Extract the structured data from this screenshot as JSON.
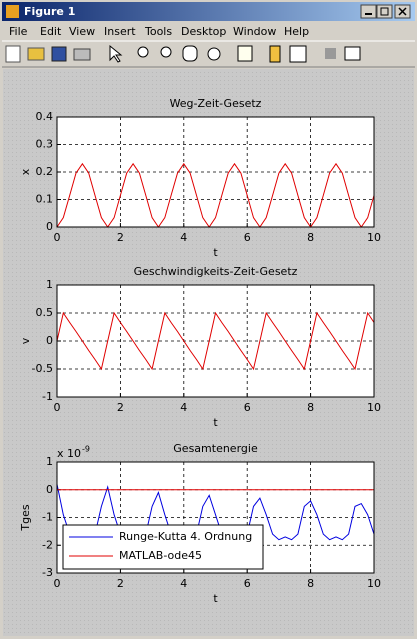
{
  "window": {
    "title": "Figure 1",
    "menu": [
      "File",
      "Edit",
      "View",
      "Insert",
      "Tools",
      "Desktop",
      "Window",
      "Help"
    ]
  },
  "chart_data": [
    {
      "type": "line",
      "title": "Weg-Zeit-Gesetz",
      "x_label": "t",
      "y_label": "x",
      "x": [
        0,
        0.2,
        0.4,
        0.6,
        0.8,
        1,
        1.2,
        1.4,
        1.6,
        1.8,
        2,
        2.2,
        2.4,
        2.6,
        2.8,
        3,
        3.2,
        3.4,
        3.6,
        3.8,
        4,
        4.2,
        4.4,
        4.6,
        4.8,
        5,
        5.2,
        5.4,
        5.6,
        5.8,
        6,
        6.2,
        6.4,
        6.6,
        6.8,
        7,
        7.2,
        7.4,
        7.6,
        7.8,
        8,
        8.2,
        8.4,
        8.6,
        8.8,
        9,
        9.2,
        9.4,
        9.6,
        9.8,
        10
      ],
      "series": [
        {
          "color": "#e00000",
          "values": [
            0,
            0.034,
            0.115,
            0.196,
            0.23,
            0.196,
            0.115,
            0.034,
            0,
            0.034,
            0.115,
            0.196,
            0.23,
            0.196,
            0.115,
            0.034,
            0,
            0.034,
            0.115,
            0.196,
            0.23,
            0.196,
            0.115,
            0.034,
            0,
            0.034,
            0.115,
            0.196,
            0.23,
            0.196,
            0.115,
            0.034,
            0,
            0.034,
            0.115,
            0.196,
            0.23,
            0.196,
            0.115,
            0.034,
            0,
            0.034,
            0.115,
            0.196,
            0.23,
            0.196,
            0.115,
            0.034,
            0,
            0.034,
            0.115
          ]
        }
      ],
      "xlim": [
        0,
        10
      ],
      "xticks": [
        0,
        2,
        4,
        6,
        8,
        10
      ],
      "ylim": [
        0,
        0.4
      ],
      "yticks": [
        0,
        0.1,
        0.2,
        0.3,
        0.4
      ],
      "grid": true
    },
    {
      "type": "line",
      "title": "Geschwindigkeits-Zeit-Gesetz",
      "x_label": "t",
      "y_label": "v",
      "x": [
        0,
        0.2,
        0.4,
        0.6,
        0.8,
        1,
        1.2,
        1.4,
        1.6,
        1.8,
        2,
        2.2,
        2.4,
        2.6,
        2.8,
        3,
        3.2,
        3.4,
        3.6,
        3.8,
        4,
        4.2,
        4.4,
        4.6,
        4.8,
        5,
        5.2,
        5.4,
        5.6,
        5.8,
        6,
        6.2,
        6.4,
        6.6,
        6.8,
        7,
        7.2,
        7.4,
        7.6,
        7.8,
        8,
        8.2,
        8.4,
        8.6,
        8.8,
        9,
        9.2,
        9.4,
        9.6,
        9.8,
        10
      ],
      "series": [
        {
          "color": "#e00000",
          "values": [
            0,
            0.5,
            0.33,
            0.17,
            0,
            -0.17,
            -0.33,
            -0.5,
            0,
            0.5,
            0.33,
            0.17,
            0,
            -0.17,
            -0.33,
            -0.5,
            0,
            0.5,
            0.33,
            0.17,
            0,
            -0.17,
            -0.33,
            -0.5,
            0,
            0.5,
            0.33,
            0.17,
            0,
            -0.17,
            -0.33,
            -0.5,
            0,
            0.5,
            0.33,
            0.17,
            0,
            -0.17,
            -0.33,
            -0.5,
            0,
            0.5,
            0.33,
            0.17,
            0,
            -0.17,
            -0.33,
            -0.5,
            0,
            0.5,
            0.33
          ]
        }
      ],
      "xlim": [
        0,
        10
      ],
      "xticks": [
        0,
        2,
        4,
        6,
        8,
        10
      ],
      "ylim": [
        -1,
        1
      ],
      "yticks": [
        -1,
        -0.5,
        0,
        0.5,
        1
      ],
      "grid": true
    },
    {
      "type": "line",
      "title": "Gesamtenergie",
      "x_label": "t",
      "y_label": "Tges",
      "y_exponent_base": "x 10",
      "y_exponent": "-9",
      "x": [
        0,
        0.2,
        0.4,
        0.6,
        0.8,
        1,
        1.2,
        1.4,
        1.6,
        1.8,
        2,
        2.2,
        2.4,
        2.6,
        2.8,
        3,
        3.2,
        3.4,
        3.6,
        3.8,
        4,
        4.2,
        4.4,
        4.6,
        4.8,
        5,
        5.2,
        5.4,
        5.6,
        5.8,
        6,
        6.2,
        6.4,
        6.6,
        6.8,
        7,
        7.2,
        7.4,
        7.6,
        7.8,
        8,
        8.2,
        8.4,
        8.6,
        8.8,
        9,
        9.2,
        9.4,
        9.6,
        9.8,
        10
      ],
      "series": [
        {
          "name": "Runge-Kutta 4. Ordnung",
          "color": "#0000e0",
          "values": [
            0.2,
            -0.9,
            -1.6,
            -1.8,
            -1.7,
            -1.8,
            -1.6,
            -0.6,
            0.1,
            -0.9,
            -1.6,
            -1.8,
            -1.7,
            -1.8,
            -1.6,
            -0.6,
            -0.1,
            -0.9,
            -1.6,
            -1.8,
            -1.7,
            -1.8,
            -1.6,
            -0.6,
            -0.2,
            -0.9,
            -1.6,
            -1.8,
            -1.7,
            -1.8,
            -1.6,
            -0.6,
            -0.3,
            -0.9,
            -1.6,
            -1.8,
            -1.7,
            -1.8,
            -1.6,
            -0.6,
            -0.4,
            -0.9,
            -1.6,
            -1.8,
            -1.7,
            -1.8,
            -1.6,
            -0.6,
            -0.5,
            -0.9,
            -1.6
          ]
        },
        {
          "name": "MATLAB-ode45",
          "color": "#e00000",
          "values": [
            0,
            0,
            0,
            0,
            0,
            0,
            0,
            0,
            0,
            0,
            0,
            0,
            0,
            0,
            0,
            0,
            0,
            0,
            0,
            0,
            0,
            0,
            0,
            0,
            0,
            0,
            0,
            0,
            0,
            0,
            0,
            0,
            0,
            0,
            0,
            0,
            0,
            0,
            0,
            0,
            0,
            0,
            0,
            0,
            0,
            0,
            0,
            0,
            0,
            0,
            0
          ]
        }
      ],
      "xlim": [
        0,
        10
      ],
      "xticks": [
        0,
        2,
        4,
        6,
        8,
        10
      ],
      "ylim": [
        -3,
        1
      ],
      "yticks": [
        -3,
        -2,
        -1,
        0,
        1
      ],
      "grid": true,
      "legend": "lower left"
    }
  ]
}
